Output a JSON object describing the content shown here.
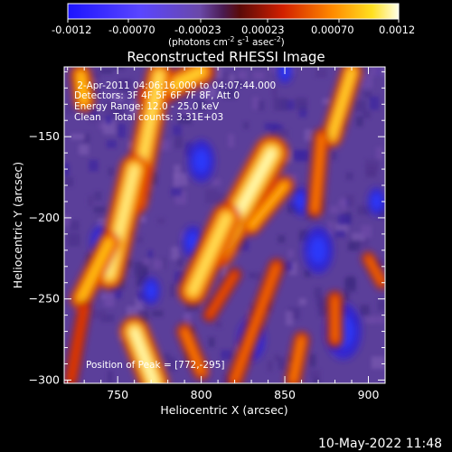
{
  "chart_data": {
    "type": "heatmap",
    "title": "Reconstructed RHESSI Image",
    "xlabel": "Heliocentric X (arcsec)",
    "ylabel": "Heliocentric Y (arcsec)",
    "xlim": [
      718,
      910
    ],
    "ylim": [
      -302,
      -107
    ],
    "x_ticks": [
      750,
      800,
      850,
      900
    ],
    "y_ticks": [
      -300,
      -250,
      -200,
      -150
    ],
    "colorbar": {
      "ticks": [
        "-0.0012",
        "-0.00070",
        "-0.00023",
        "0.00023",
        "0.00070",
        "0.0012"
      ],
      "units_label": "(photons cm",
      "units_exp1": "-2",
      "units_mid": " s",
      "units_exp2": "-1",
      "units_mid2": " asec",
      "units_exp3": "-2",
      "units_end": ")"
    },
    "annotations": [
      " 2-Apr-2011 04:06:16.000 to 04:07:44.000",
      "Detectors: 3F 4F 5F 6F 7F 8F, Att 0",
      "Energy Range: 12.0 - 25.0 keV",
      "Clean    Total counts: 3.31E+03"
    ],
    "position_label": "Position of Peak = [772,-295]",
    "bright_features": [
      {
        "x1": 728,
        "y1": -112,
        "x2": 730,
        "y2": -128,
        "w": 8,
        "intensity": 0.8
      },
      {
        "x1": 770,
        "y1": -125,
        "x2": 800,
        "y2": -110,
        "w": 10,
        "intensity": 0.85
      },
      {
        "x1": 775,
        "y1": -112,
        "x2": 760,
        "y2": -190,
        "w": 10,
        "intensity": 0.9
      },
      {
        "x1": 760,
        "y1": -170,
        "x2": 745,
        "y2": -235,
        "w": 11,
        "intensity": 0.95
      },
      {
        "x1": 745,
        "y1": -215,
        "x2": 728,
        "y2": -250,
        "w": 8,
        "intensity": 0.8
      },
      {
        "x1": 842,
        "y1": -160,
        "x2": 810,
        "y2": -220,
        "w": 13,
        "intensity": 1.0
      },
      {
        "x1": 815,
        "y1": -200,
        "x2": 795,
        "y2": -245,
        "w": 11,
        "intensity": 0.9
      },
      {
        "x1": 850,
        "y1": -180,
        "x2": 830,
        "y2": -205,
        "w": 7,
        "intensity": 0.75
      },
      {
        "x1": 890,
        "y1": -110,
        "x2": 878,
        "y2": -150,
        "w": 8,
        "intensity": 0.85
      },
      {
        "x1": 872,
        "y1": -150,
        "x2": 868,
        "y2": -195,
        "w": 6,
        "intensity": 0.6
      },
      {
        "x1": 900,
        "y1": -225,
        "x2": 908,
        "y2": -240,
        "w": 5,
        "intensity": 0.55
      },
      {
        "x1": 845,
        "y1": -230,
        "x2": 820,
        "y2": -300,
        "w": 6,
        "intensity": 0.55
      },
      {
        "x1": 820,
        "y1": -235,
        "x2": 805,
        "y2": -260,
        "w": 5,
        "intensity": 0.5
      },
      {
        "x1": 760,
        "y1": -270,
        "x2": 772,
        "y2": -302,
        "w": 11,
        "intensity": 1.0
      },
      {
        "x1": 790,
        "y1": -270,
        "x2": 800,
        "y2": -295,
        "w": 6,
        "intensity": 0.6
      },
      {
        "x1": 730,
        "y1": -255,
        "x2": 722,
        "y2": -300,
        "w": 5,
        "intensity": 0.45
      },
      {
        "x1": 880,
        "y1": -250,
        "x2": 880,
        "y2": -275,
        "w": 6,
        "intensity": 0.55
      },
      {
        "x1": 860,
        "y1": -275,
        "x2": 855,
        "y2": -300,
        "w": 6,
        "intensity": 0.6
      }
    ],
    "dark_features": [
      {
        "x": 800,
        "y": -165,
        "r": 9
      },
      {
        "x": 795,
        "y": -215,
        "r": 7
      },
      {
        "x": 870,
        "y": -220,
        "r": 10
      },
      {
        "x": 885,
        "y": -270,
        "r": 12
      },
      {
        "x": 830,
        "y": -275,
        "r": 9
      },
      {
        "x": 770,
        "y": -245,
        "r": 6
      },
      {
        "x": 740,
        "y": -215,
        "r": 7
      },
      {
        "x": 860,
        "y": -190,
        "r": 6
      },
      {
        "x": 905,
        "y": -190,
        "r": 6
      },
      {
        "x": 850,
        "y": -110,
        "r": 5
      }
    ]
  },
  "timestamp": "10-May-2022 11:48"
}
